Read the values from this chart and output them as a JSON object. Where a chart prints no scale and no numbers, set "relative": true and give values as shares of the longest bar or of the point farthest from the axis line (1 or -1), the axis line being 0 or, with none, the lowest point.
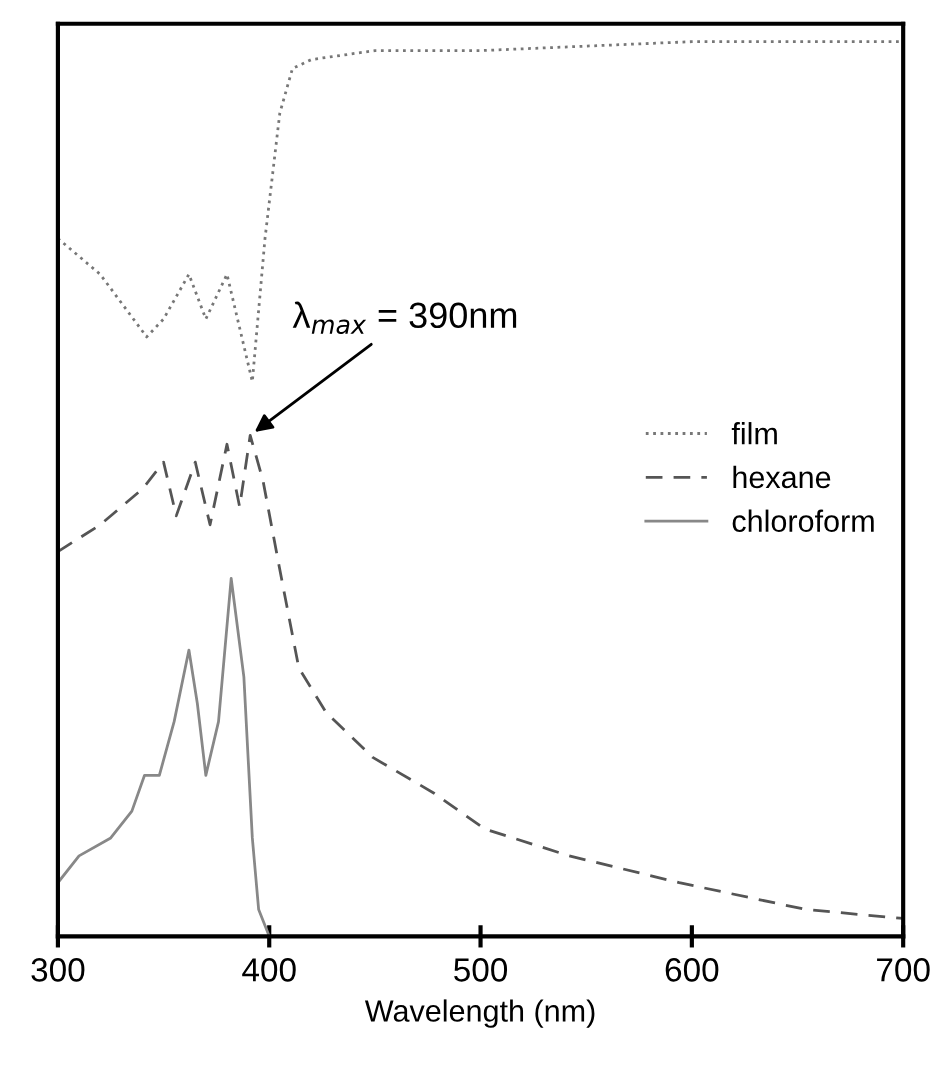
{
  "chart_data": {
    "type": "line",
    "relative": true,
    "xlabel": "Wavelength (nm)",
    "xlim": [
      300,
      700
    ],
    "xticks": [
      300,
      400,
      500,
      600,
      700
    ],
    "legend": "right",
    "grid": false,
    "annotations": [
      {
        "text": "λ$_{max}$ = 390nm",
        "x": 391,
        "y": 0.56
      }
    ],
    "series": [
      {
        "name": "film",
        "color": "#777777",
        "line_style": "dotted",
        "x": [
          300,
          320,
          342,
          350,
          362,
          370,
          380,
          386,
          392,
          398,
          405,
          411,
          420,
          450,
          500,
          600,
          700
        ],
        "values": [
          0.78,
          0.74,
          0.67,
          0.69,
          0.74,
          0.69,
          0.74,
          0.68,
          0.62,
          0.78,
          0.92,
          0.97,
          0.98,
          0.99,
          0.99,
          1.0,
          1.0
        ]
      },
      {
        "name": "hexane",
        "color": "#555555",
        "line_style": "dashed",
        "x": [
          300,
          320,
          340,
          350,
          356,
          365,
          372,
          380,
          386,
          391,
          397,
          405,
          414,
          427,
          449,
          478,
          502,
          542,
          594,
          654,
          700
        ],
        "values": [
          0.43,
          0.46,
          0.5,
          0.53,
          0.47,
          0.53,
          0.46,
          0.55,
          0.48,
          0.56,
          0.51,
          0.41,
          0.3,
          0.25,
          0.2,
          0.16,
          0.12,
          0.09,
          0.06,
          0.03,
          0.02
        ]
      },
      {
        "name": "chloroform",
        "color": "#888888",
        "line_style": "solid",
        "x": [
          300,
          310,
          325,
          335,
          341,
          348,
          355,
          362,
          366,
          370,
          376,
          382,
          388,
          392,
          395,
          400,
          450,
          700
        ],
        "values": [
          0.06,
          0.09,
          0.11,
          0.14,
          0.18,
          0.18,
          0.24,
          0.32,
          0.26,
          0.18,
          0.24,
          0.4,
          0.29,
          0.11,
          0.03,
          0.0,
          0.0,
          0.0
        ]
      }
    ]
  }
}
